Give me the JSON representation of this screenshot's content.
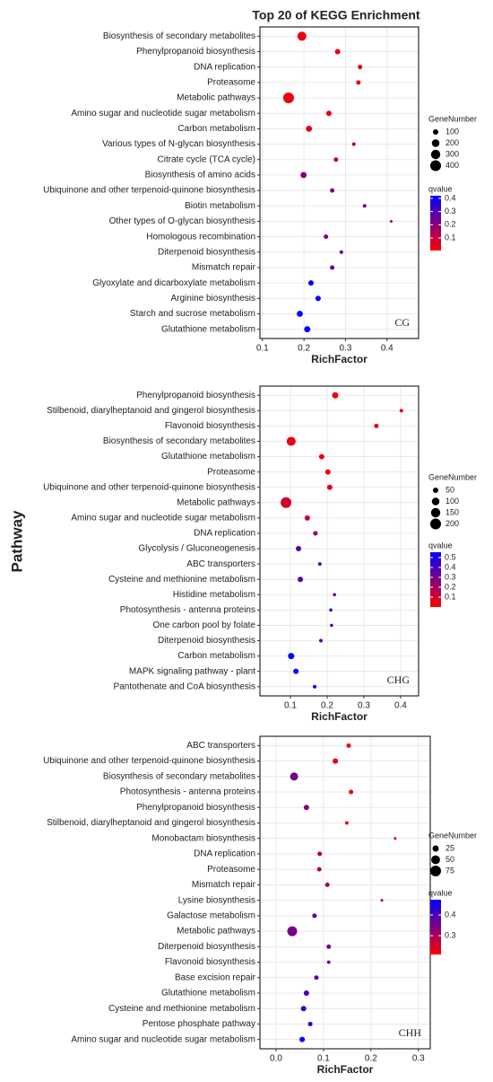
{
  "title": "Top 20 of KEGG Enrichment",
  "y_label": "Pathway",
  "chart_data": [
    {
      "type": "scatter",
      "panel_label": "CG",
      "x_label": "RichFactor",
      "categories": [
        "Biosynthesis of secondary metabolites",
        "Phenylpropanoid biosynthesis",
        "DNA replication",
        "Proteasome",
        "Metabolic pathways",
        "Amino sugar and nucleotide sugar metabolism",
        "Carbon metabolism",
        "Various types of N-glycan biosynthesis",
        "Citrate cycle (TCA cycle)",
        "Biosynthesis of amino acids",
        "Ubiquinone and other terpenoid-quinone biosynthesis",
        "Biotin metabolism",
        "Other types of O-glycan biosynthesis",
        "Homologous recombination",
        "Diterpenoid biosynthesis",
        "Mismatch repair",
        "Glyoxylate and dicarboxylate metabolism",
        "Arginine biosynthesis",
        "Starch and sucrose metabolism",
        "Glutathione metabolism"
      ],
      "values": [
        0.195,
        0.281,
        0.335,
        0.331,
        0.163,
        0.26,
        0.212,
        0.32,
        0.277,
        0.199,
        0.268,
        0.346,
        0.41,
        0.253,
        0.29,
        0.268,
        0.217,
        0.234,
        0.19,
        0.208
      ],
      "sizes": [
        280,
        100,
        70,
        70,
        400,
        100,
        130,
        45,
        70,
        130,
        70,
        45,
        25,
        70,
        45,
        70,
        100,
        100,
        130,
        130
      ],
      "qvalues": [
        0.03,
        0.04,
        0.04,
        0.04,
        0.03,
        0.05,
        0.05,
        0.12,
        0.12,
        0.2,
        0.2,
        0.22,
        0.2,
        0.2,
        0.25,
        0.28,
        0.42,
        0.42,
        0.42,
        0.42
      ],
      "xlim": [
        0.094,
        0.476
      ],
      "xticks": [
        0.1,
        0.2,
        0.3,
        0.4
      ],
      "size_title": "GeneNumber",
      "size_ticks": [
        100,
        200,
        300,
        400
      ],
      "color_title": "qvalue",
      "color_ticks": [
        0.1,
        0.2,
        0.3,
        0.4
      ],
      "color_lim": [
        0.005,
        0.42
      ],
      "color_low": "#ff0000",
      "color_high": "#0000ff",
      "grid": true
    },
    {
      "type": "scatter",
      "panel_label": "CHG",
      "x_label": "RichFactor",
      "categories": [
        "Phenylpropanoid biosynthesis",
        "Stilbenoid, diarylheptanoid and gingerol biosynthesis",
        "Flavonoid biosynthesis",
        "Biosynthesis of secondary metabolites",
        "Glutathione metabolism",
        "Proteasome",
        "Ubiquinone and other terpenoid-quinone biosynthesis",
        "Metabolic pathways",
        "Amino sugar and nucleotide sugar metabolism",
        "DNA replication",
        "Glycolysis / Gluconeogenesis",
        "ABC transporters",
        "Cysteine and methionine metabolism",
        "Histidine metabolism",
        "Photosynthesis - antenna proteins",
        "One carbon pool by folate",
        "Diterpenoid biosynthesis",
        "Carbon metabolism",
        "MAPK signaling pathway - plant",
        "Pantothenate and CoA biosynthesis"
      ],
      "values": [
        0.222,
        0.402,
        0.334,
        0.102,
        0.185,
        0.202,
        0.207,
        0.088,
        0.146,
        0.168,
        0.122,
        0.18,
        0.127,
        0.22,
        0.21,
        0.212,
        0.183,
        0.102,
        0.115,
        0.166
      ],
      "sizes": [
        68,
        22,
        35,
        140,
        50,
        50,
        50,
        200,
        50,
        35,
        50,
        22,
        50,
        18,
        18,
        18,
        22,
        68,
        50,
        22
      ],
      "qvalues": [
        0.03,
        0.03,
        0.04,
        0.04,
        0.05,
        0.05,
        0.06,
        0.1,
        0.12,
        0.25,
        0.35,
        0.35,
        0.35,
        0.35,
        0.4,
        0.4,
        0.35,
        0.55,
        0.55,
        0.55
      ],
      "xlim": [
        0.017,
        0.449
      ],
      "xticks": [
        0.1,
        0.2,
        0.3,
        0.4
      ],
      "size_title": "GeneNumber",
      "size_ticks": [
        50,
        100,
        150,
        200
      ],
      "color_title": "qvalue",
      "color_ticks": [
        0.1,
        0.2,
        0.3,
        0.4,
        0.5
      ],
      "color_lim": [
        0.0,
        0.554
      ],
      "color_low": "#ff0000",
      "color_high": "#0000ff",
      "grid": true
    },
    {
      "type": "scatter",
      "panel_label": "CHH",
      "x_label": "RichFactor",
      "categories": [
        "ABC transporters",
        "Ubiquinone and other terpenoid-quinone biosynthesis",
        "Biosynthesis of secondary metabolites",
        "Photosynthesis - antenna proteins",
        "Phenylpropanoid biosynthesis",
        "Stilbenoid, diarylheptanoid and gingerol biosynthesis",
        "Monobactam biosynthesis",
        "DNA replication",
        "Proteasome",
        "Mismatch repair",
        "Lysine biosynthesis",
        "Galactose metabolism",
        "Metabolic pathways",
        "Diterpenoid biosynthesis",
        "Flavonoid biosynthesis",
        "Base excision repair",
        "Glutathione metabolism",
        "Cysteine and methionine metabolism",
        "Pentose phosphate pathway",
        "Amino sugar and nucleotide sugar metabolism"
      ],
      "values": [
        0.153,
        0.125,
        0.038,
        0.158,
        0.064,
        0.149,
        0.251,
        0.092,
        0.091,
        0.108,
        0.223,
        0.081,
        0.034,
        0.111,
        0.111,
        0.085,
        0.064,
        0.058,
        0.072,
        0.055
      ],
      "sizes": [
        13,
        19,
        42,
        13,
        19,
        8,
        5,
        13,
        13,
        13,
        5,
        13,
        63,
        13,
        8,
        13,
        19,
        19,
        13,
        19
      ],
      "qvalues": [
        0.22,
        0.23,
        0.35,
        0.23,
        0.33,
        0.23,
        0.23,
        0.29,
        0.3,
        0.3,
        0.3,
        0.38,
        0.35,
        0.35,
        0.35,
        0.38,
        0.4,
        0.42,
        0.45,
        0.47
      ],
      "xlim": [
        -0.034,
        0.325
      ],
      "xticks": [
        {
          "value": 0,
          "label": "0.0"
        },
        0.1,
        0.2,
        0.3
      ],
      "size_title": "GeneNumber",
      "size_ticks": [
        25,
        50,
        75
      ],
      "color_title": "qvalue",
      "color_ticks": [
        0.3,
        0.4
      ],
      "color_lim": [
        0.209,
        0.474
      ],
      "color_low": "#ff0000",
      "color_high": "#0000ff",
      "grid": true
    }
  ]
}
